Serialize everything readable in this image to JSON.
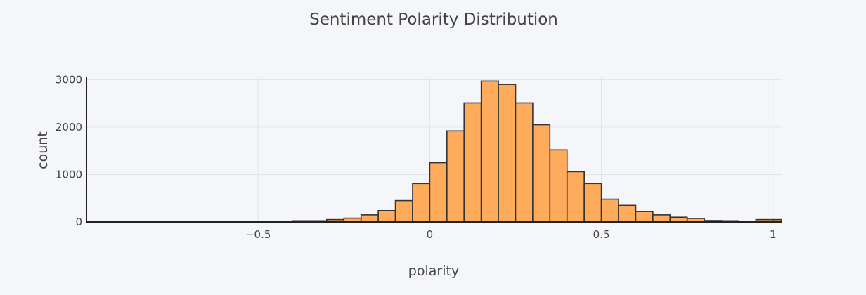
{
  "chart_data": {
    "type": "bar",
    "title": "Sentiment Polarity Distribution",
    "xlabel": "polarity",
    "ylabel": "count",
    "xlim": [
      -1,
      1.025
    ],
    "ylim": [
      0,
      3050
    ],
    "bin_width": 0.05,
    "x_ticks": [
      {
        "value": -0.5,
        "label": "−0.5"
      },
      {
        "value": 0,
        "label": "0"
      },
      {
        "value": 0.5,
        "label": "0.5"
      },
      {
        "value": 1,
        "label": "1"
      }
    ],
    "y_ticks": [
      {
        "value": 0,
        "label": "0"
      },
      {
        "value": 1000,
        "label": "1000"
      },
      {
        "value": 2000,
        "label": "2000"
      },
      {
        "value": 3000,
        "label": "3000"
      }
    ],
    "grid": true,
    "bars": [
      {
        "x": -0.975,
        "count": 8
      },
      {
        "x": -0.925,
        "count": 8
      },
      {
        "x": -0.825,
        "count": 7
      },
      {
        "x": -0.775,
        "count": 7
      },
      {
        "x": -0.725,
        "count": 7
      },
      {
        "x": -0.575,
        "count": 7
      },
      {
        "x": -0.525,
        "count": 8
      },
      {
        "x": -0.475,
        "count": 8
      },
      {
        "x": -0.425,
        "count": 10
      },
      {
        "x": -0.375,
        "count": 25
      },
      {
        "x": -0.325,
        "count": 25
      },
      {
        "x": -0.275,
        "count": 50
      },
      {
        "x": -0.225,
        "count": 80
      },
      {
        "x": -0.175,
        "count": 150
      },
      {
        "x": -0.125,
        "count": 240
      },
      {
        "x": -0.075,
        "count": 450
      },
      {
        "x": -0.025,
        "count": 810
      },
      {
        "x": 0.025,
        "count": 1250
      },
      {
        "x": 0.075,
        "count": 1920
      },
      {
        "x": 0.125,
        "count": 2510
      },
      {
        "x": 0.175,
        "count": 2970
      },
      {
        "x": 0.225,
        "count": 2900
      },
      {
        "x": 0.275,
        "count": 2510
      },
      {
        "x": 0.325,
        "count": 2050
      },
      {
        "x": 0.375,
        "count": 1520
      },
      {
        "x": 0.425,
        "count": 1060
      },
      {
        "x": 0.475,
        "count": 810
      },
      {
        "x": 0.525,
        "count": 480
      },
      {
        "x": 0.575,
        "count": 350
      },
      {
        "x": 0.625,
        "count": 220
      },
      {
        "x": 0.675,
        "count": 150
      },
      {
        "x": 0.725,
        "count": 100
      },
      {
        "x": 0.775,
        "count": 75
      },
      {
        "x": 0.825,
        "count": 30
      },
      {
        "x": 0.875,
        "count": 25
      },
      {
        "x": 0.925,
        "count": 8
      },
      {
        "x": 0.975,
        "count": 50
      },
      {
        "x": 1.025,
        "count": 50
      }
    ],
    "colors": {
      "bar_fill": "#ffab5c",
      "bar_stroke": "#333333",
      "background": "#f5f6f9"
    }
  }
}
